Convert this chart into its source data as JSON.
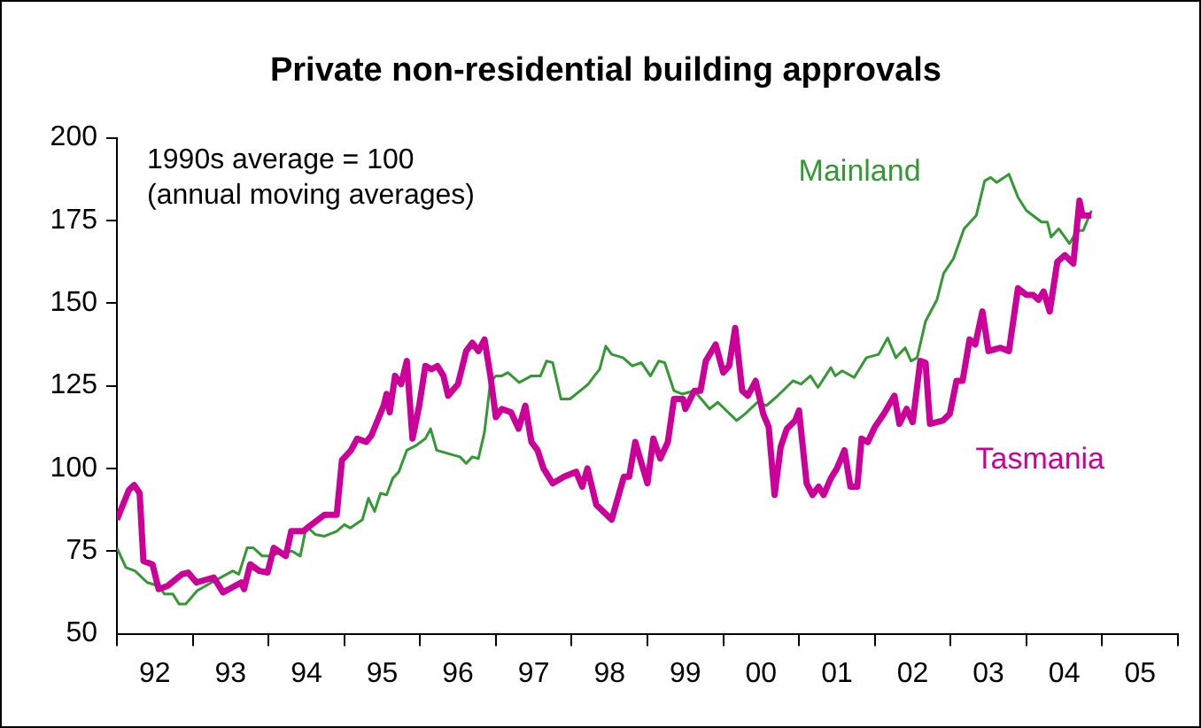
{
  "chart_data": {
    "type": "line",
    "title": "Private non-residential building approvals",
    "annotations": [
      "1990s average = 100",
      "(annual moving averages)"
    ],
    "xlim": [
      "1992",
      "2006"
    ],
    "xticks": [
      {
        "value": "1992",
        "label": null
      },
      {
        "value": "1992-07",
        "label": "92"
      },
      {
        "value": "1993",
        "label": null
      },
      {
        "value": "1993-07",
        "label": "93"
      },
      {
        "value": "1994",
        "label": null
      },
      {
        "value": "1994-07",
        "label": "94"
      },
      {
        "value": "1995",
        "label": null
      },
      {
        "value": "1995-07",
        "label": "95"
      },
      {
        "value": "1996",
        "label": null
      },
      {
        "value": "1996-07",
        "label": "96"
      },
      {
        "value": "1997",
        "label": null
      },
      {
        "value": "1997-07",
        "label": "97"
      },
      {
        "value": "1998",
        "label": null
      },
      {
        "value": "1998-07",
        "label": "98"
      },
      {
        "value": "1999",
        "label": null
      },
      {
        "value": "1999-07",
        "label": "99"
      },
      {
        "value": "2000",
        "label": null
      },
      {
        "value": "2000-07",
        "label": "00"
      },
      {
        "value": "2001",
        "label": null
      },
      {
        "value": "2001-07",
        "label": "01"
      },
      {
        "value": "2002",
        "label": null
      },
      {
        "value": "2002-07",
        "label": "02"
      },
      {
        "value": "2003",
        "label": null
      },
      {
        "value": "2003-07",
        "label": "03"
      },
      {
        "value": "2004",
        "label": null
      },
      {
        "value": "2004-07",
        "label": "04"
      },
      {
        "value": "2005",
        "label": null
      },
      {
        "value": "2005-07",
        "label": "05"
      },
      {
        "value": "2006",
        "label": null
      }
    ],
    "ylim": [
      50,
      200
    ],
    "yticks": [
      50,
      75,
      100,
      125,
      150,
      175,
      200
    ],
    "grid": false,
    "legend": false,
    "marker": "none",
    "line_style": "solid",
    "series": [
      {
        "name": "Mainland",
        "color": "#339933",
        "x": [
          "1992-01-01",
          "1992-02-14",
          "1992-03-27",
          "1992-05-25",
          "1992-07-19",
          "1992-08-17",
          "1992-09-27",
          "1992-10-26",
          "1992-11-28",
          "1993-01-22",
          "1993-03-02",
          "1993-05-14",
          "1993-07-11",
          "1993-08-10",
          "1993-09-20",
          "1993-10-19",
          "1993-12-02",
          "1994-01-15",
          "1994-02-25",
          "1994-04-22",
          "1994-06-02",
          "1994-07-01",
          "1994-08-14",
          "1994-09-27",
          "1994-11-25",
          "1995-01-01",
          "1995-01-29",
          "1995-03-27",
          "1995-04-26",
          "1995-05-25",
          "1995-06-23",
          "1995-07-22",
          "1995-08-21",
          "1995-09-20",
          "1995-10-28",
          "1995-12-13",
          "1996-01-26",
          "1996-02-21",
          "1996-03-20",
          "1996-05-14",
          "1996-07-11",
          "1996-08-10",
          "1996-09-09",
          "1996-10-08",
          "1996-11-07",
          "1996-12-05",
          "1997-01-01",
          "1997-01-29",
          "1997-02-28",
          "1997-04-22",
          "1997-06-20",
          "1997-08-03",
          "1997-09-02",
          "1997-10-01",
          "1997-11-10",
          "1997-12-23",
          "1998-02-21",
          "1998-03-20",
          "1998-04-19",
          "1998-05-14",
          "1998-06-13",
          "1998-07-11",
          "1998-09-05",
          "1998-10-19",
          "1998-12-02",
          "1999-01-15",
          "1999-02-25",
          "1999-03-23",
          "1999-05-07",
          "1999-06-16",
          "1999-08-14",
          "1999-10-26",
          "1999-12-05",
          "2000-03-05",
          "2000-04-15",
          "2000-06-13",
          "2000-07-26",
          "2000-09-20",
          "2000-12-02",
          "2001-01-11",
          "2001-02-25",
          "2001-04-01",
          "2001-06-02",
          "2001-06-23",
          "2001-07-26",
          "2001-09-23",
          "2001-11-21",
          "2002-01-19",
          "2002-03-02",
          "2002-04-11",
          "2002-05-25",
          "2002-06-23",
          "2002-07-22",
          "2002-09-02",
          "2002-10-26",
          "2002-11-28",
          "2003-01-15",
          "2003-03-05",
          "2003-05-03",
          "2003-06-13",
          "2003-07-11",
          "2003-08-10",
          "2003-10-08",
          "2003-11-21",
          "2004-01-01",
          "2004-03-13",
          "2004-04-11",
          "2004-04-28",
          "2004-06-05",
          "2004-07-26",
          "2004-09-02",
          "2004-10-01",
          "2004-11-10"
        ],
        "values": [
          76,
          70,
          69,
          65.5,
          64.5,
          62,
          62,
          59,
          59,
          63,
          64.5,
          67,
          69,
          68,
          76,
          76,
          73.5,
          73.5,
          74.5,
          75,
          73.5,
          82.5,
          80,
          79.5,
          81,
          83,
          82,
          84.5,
          91,
          87,
          92.5,
          92,
          97,
          99,
          105.5,
          107,
          109,
          112,
          105.5,
          104.5,
          103.5,
          101.5,
          103.5,
          103,
          111,
          126,
          128,
          128,
          129,
          126,
          128,
          128,
          132.5,
          132,
          121,
          121,
          124,
          125.5,
          128,
          130,
          137,
          134.5,
          133.5,
          131,
          132,
          128,
          132.5,
          132,
          123.5,
          122.5,
          123.5,
          118,
          120,
          114.5,
          116.5,
          120,
          119,
          122,
          126.5,
          125.5,
          128,
          124.5,
          130.5,
          128,
          129.5,
          127.5,
          133.5,
          134.5,
          139.5,
          133.5,
          136.5,
          132.5,
          133.5,
          144.5,
          151,
          159,
          163.5,
          172.5,
          176.5,
          187,
          188,
          186.5,
          189,
          182,
          178,
          174.5,
          174.5,
          170,
          172.5,
          168,
          172,
          172,
          178
        ]
      },
      {
        "name": "Tasmania",
        "color": "#cc0099",
        "x": [
          "1992-01-01",
          "1992-02-28",
          "1992-03-23",
          "1992-04-19",
          "1992-05-07",
          "1992-06-20",
          "1992-07-19",
          "1992-09-02",
          "1992-11-10",
          "1992-12-09",
          "1993-01-19",
          "1993-03-13",
          "1993-04-11",
          "1993-05-25",
          "1993-07-22",
          "1993-08-21",
          "1993-09-05",
          "1993-10-04",
          "1993-11-17",
          "1993-12-27",
          "1994-01-26",
          "1994-03-23",
          "1994-04-19",
          "1994-06-16",
          "1994-07-15",
          "1994-09-27",
          "1994-11-25",
          "1994-12-20",
          "1995-02-03",
          "1995-03-02",
          "1995-04-15",
          "1995-05-10",
          "1995-07-08",
          "1995-07-22",
          "1995-08-07",
          "1995-09-02",
          "1995-10-01",
          "1995-10-28",
          "1995-11-25",
          "1995-12-27",
          "1996-01-26",
          "1996-02-25",
          "1996-03-23",
          "1996-04-22",
          "1996-05-14",
          "1996-07-01",
          "1996-08-10",
          "1996-09-09",
          "1996-10-08",
          "1996-11-07",
          "1996-12-05",
          "1997-01-01",
          "1997-01-29",
          "1997-03-13",
          "1997-04-19",
          "1997-05-21",
          "1997-06-20",
          "1997-07-19",
          "1997-08-17",
          "1997-10-01",
          "1997-11-25",
          "1998-01-22",
          "1998-02-21",
          "1998-03-16",
          "1998-04-28",
          "1998-07-11",
          "1998-09-09",
          "1998-10-04",
          "1998-11-03",
          "1999-01-01",
          "1999-01-29",
          "1999-03-02",
          "1999-04-08",
          "1999-05-07",
          "1999-06-20",
          "1999-07-01",
          "1999-08-14",
          "1999-09-13",
          "1999-10-08",
          "1999-11-25",
          "2000-01-01",
          "2000-01-29",
          "2000-02-28",
          "2000-04-01",
          "2000-04-28",
          "2000-06-05",
          "2000-07-11",
          "2000-08-07",
          "2000-09-05",
          "2000-10-04",
          "2000-11-03",
          "2000-12-13",
          "2001-01-01",
          "2001-02-07",
          "2001-03-05",
          "2001-04-04",
          "2001-04-28",
          "2001-06-02",
          "2001-07-01",
          "2001-08-07",
          "2001-09-05",
          "2001-10-08",
          "2001-10-28",
          "2001-11-28",
          "2002-01-01",
          "2002-02-14",
          "2002-04-04",
          "2002-04-28",
          "2002-06-02",
          "2002-07-01",
          "2002-08-07",
          "2002-09-02",
          "2002-09-23",
          "2002-11-25",
          "2002-12-27",
          "2003-01-29",
          "2003-02-28",
          "2003-04-01",
          "2003-04-28",
          "2003-06-02",
          "2003-07-01",
          "2003-08-28",
          "2003-10-08",
          "2003-11-21",
          "2004-01-01",
          "2004-02-03",
          "2004-02-28",
          "2004-03-23",
          "2004-04-22",
          "2004-05-28",
          "2004-07-04",
          "2004-08-14",
          "2004-09-13",
          "2004-09-27",
          "2004-11-10"
        ],
        "values": [
          84.5,
          93.5,
          95,
          92.5,
          72,
          71,
          63.5,
          64.5,
          68,
          68.5,
          65.5,
          66.5,
          67,
          62.5,
          64.5,
          65.5,
          63.5,
          71,
          69,
          68.5,
          76,
          73.5,
          81,
          81,
          82.5,
          86,
          86,
          102.5,
          105.5,
          109,
          108,
          110,
          119,
          122.5,
          117,
          128,
          125.5,
          132.5,
          109,
          119,
          131,
          130,
          131,
          128,
          122,
          125.5,
          135.5,
          138,
          135.5,
          139,
          128,
          115.5,
          118,
          117,
          112,
          119,
          108,
          105.5,
          100,
          95.5,
          97.5,
          99,
          94.5,
          100,
          89,
          84.5,
          97.5,
          97.5,
          108,
          95.5,
          109,
          103,
          108,
          121,
          121,
          118,
          123.5,
          123.5,
          132.5,
          137.5,
          129,
          131,
          142.5,
          123.5,
          122,
          126.5,
          116.5,
          112.5,
          92,
          106.5,
          112,
          114.5,
          117.5,
          95.5,
          92,
          94.5,
          92,
          97,
          100,
          105.5,
          94.5,
          94.5,
          109,
          108,
          112.5,
          116.5,
          122,
          113.5,
          118,
          114,
          132.5,
          132,
          113.5,
          114.5,
          116.5,
          126.5,
          126.5,
          139,
          137.5,
          147.5,
          135.5,
          136.5,
          135.5,
          154.5,
          152.5,
          152.5,
          151,
          153.5,
          147.5,
          162.5,
          164.5,
          162,
          181,
          176.5,
          176.5
        ]
      }
    ]
  }
}
